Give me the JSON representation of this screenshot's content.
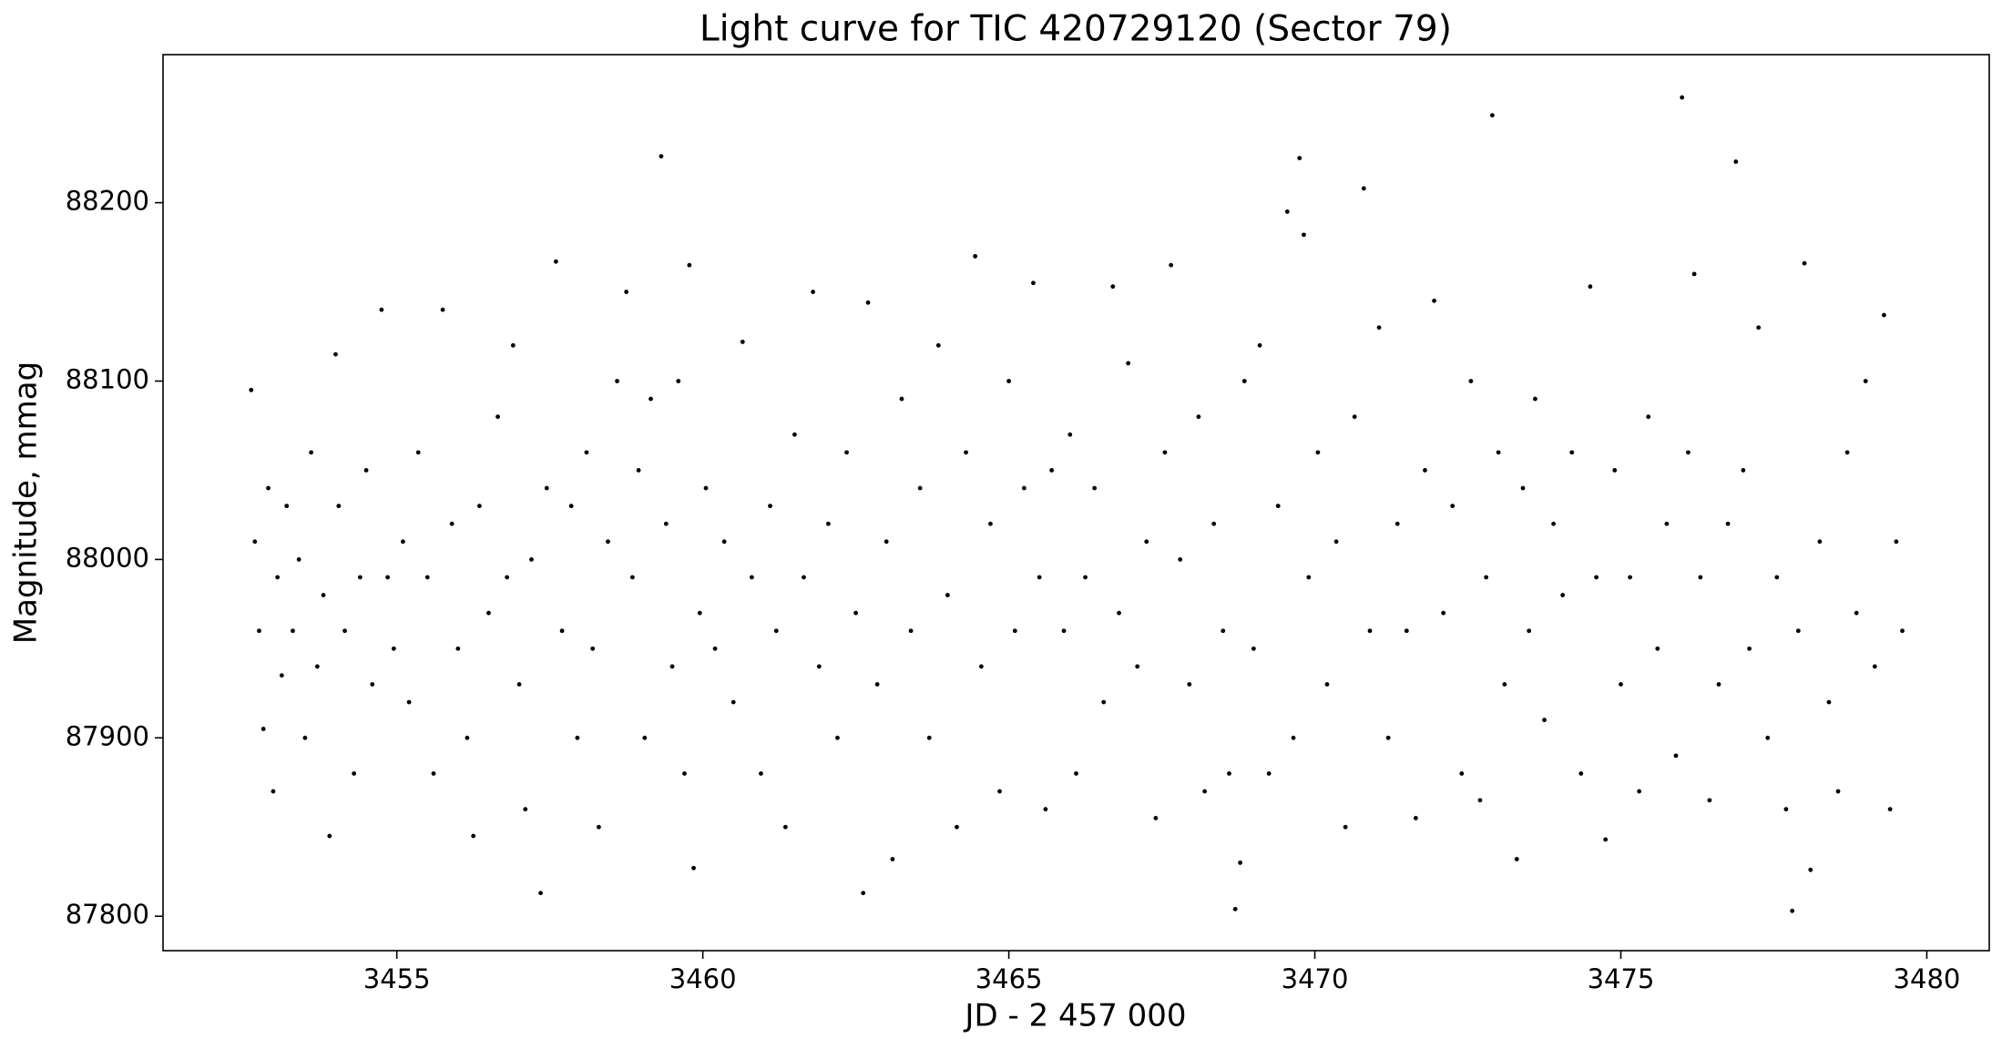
{
  "chart_data": {
    "type": "scatter",
    "title": "Light curve for TIC 420729120 (Sector 79)",
    "x_label": "JD - 2 457 000",
    "y_label": "Magnitude, mmag",
    "color": "#000000",
    "xlim": [
      3451.18,
      3481.02
    ],
    "ylim": [
      87780.7,
      88283
    ],
    "xticks": [
      3455,
      3460,
      3465,
      3470,
      3475,
      3480
    ],
    "yticks": [
      87800,
      87900,
      88000,
      88100,
      88200
    ],
    "x": [
      3452.62,
      3452.68,
      3452.75,
      3452.82,
      3452.9,
      3452.98,
      3453.05,
      3453.12,
      3453.2,
      3453.3,
      3453.4,
      3453.5,
      3453.6,
      3453.7,
      3453.8,
      3453.9,
      3454.0,
      3454.05,
      3454.15,
      3454.3,
      3454.4,
      3454.5,
      3454.6,
      3454.75,
      3454.85,
      3454.95,
      3455.1,
      3455.2,
      3455.35,
      3455.5,
      3455.6,
      3455.75,
      3455.9,
      3456.0,
      3456.15,
      3456.25,
      3456.35,
      3456.5,
      3456.65,
      3456.8,
      3456.9,
      3457.0,
      3457.1,
      3457.2,
      3457.35,
      3457.45,
      3457.6,
      3457.7,
      3457.85,
      3457.95,
      3458.1,
      3458.2,
      3458.3,
      3458.45,
      3458.6,
      3458.75,
      3458.85,
      3458.95,
      3459.05,
      3459.15,
      3459.32,
      3459.4,
      3459.5,
      3459.6,
      3459.7,
      3459.78,
      3459.85,
      3459.95,
      3460.05,
      3460.2,
      3460.35,
      3460.5,
      3460.65,
      3460.8,
      3460.95,
      3461.1,
      3461.2,
      3461.35,
      3461.5,
      3461.65,
      3461.8,
      3461.9,
      3462.05,
      3462.2,
      3462.35,
      3462.5,
      3462.62,
      3462.7,
      3462.85,
      3463.0,
      3463.1,
      3463.25,
      3463.4,
      3463.55,
      3463.7,
      3463.85,
      3464.0,
      3464.15,
      3464.3,
      3464.45,
      3464.55,
      3464.7,
      3464.85,
      3465.0,
      3465.1,
      3465.25,
      3465.4,
      3465.5,
      3465.6,
      3465.7,
      3465.9,
      3466.0,
      3466.1,
      3466.25,
      3466.4,
      3466.55,
      3466.7,
      3466.8,
      3466.95,
      3467.1,
      3467.25,
      3467.4,
      3467.55,
      3467.65,
      3467.8,
      3467.95,
      3468.1,
      3468.2,
      3468.35,
      3468.5,
      3468.6,
      3468.7,
      3468.78,
      3468.85,
      3469.0,
      3469.1,
      3469.25,
      3469.4,
      3469.55,
      3469.65,
      3469.75,
      3469.82,
      3469.9,
      3470.05,
      3470.2,
      3470.35,
      3470.5,
      3470.65,
      3470.8,
      3470.9,
      3471.05,
      3471.2,
      3471.35,
      3471.5,
      3471.65,
      3471.8,
      3471.95,
      3472.1,
      3472.25,
      3472.4,
      3472.55,
      3472.7,
      3472.8,
      3472.9,
      3473.0,
      3473.1,
      3473.3,
      3473.4,
      3473.5,
      3473.6,
      3473.75,
      3473.9,
      3474.05,
      3474.2,
      3474.35,
      3474.5,
      3474.6,
      3474.75,
      3474.9,
      3475.0,
      3475.15,
      3475.3,
      3475.45,
      3475.6,
      3475.75,
      3475.9,
      3476.0,
      3476.1,
      3476.2,
      3476.3,
      3476.45,
      3476.6,
      3476.75,
      3476.88,
      3477.0,
      3477.1,
      3477.25,
      3477.4,
      3477.55,
      3477.7,
      3477.8,
      3477.9,
      3478.0,
      3478.1,
      3478.25,
      3478.4,
      3478.55,
      3478.7,
      3478.85,
      3479.0,
      3479.15,
      3479.3,
      3479.4,
      3479.5,
      3479.6
    ],
    "values": [
      88095,
      88010,
      87960,
      87905,
      88040,
      87870,
      87990,
      87935,
      88030,
      87960,
      88000,
      87900,
      88060,
      87940,
      87980,
      87845,
      88115,
      88030,
      87960,
      87880,
      87990,
      88050,
      87930,
      88140,
      87990,
      87950,
      88010,
      87920,
      88060,
      87990,
      87880,
      88140,
      88020,
      87950,
      87900,
      87845,
      88030,
      87970,
      88080,
      87990,
      88120,
      87930,
      87860,
      88000,
      87813,
      88040,
      88167,
      87960,
      88030,
      87900,
      88060,
      87950,
      87850,
      88010,
      88100,
      88150,
      87990,
      88050,
      87900,
      88090,
      88226,
      88020,
      87940,
      88100,
      87880,
      88165,
      87827,
      87970,
      88040,
      87950,
      88010,
      87920,
      88122,
      87990,
      87880,
      88030,
      87960,
      87850,
      88070,
      87990,
      88150,
      87940,
      88020,
      87900,
      88060,
      87970,
      87813,
      88144,
      87930,
      88010,
      87832,
      88090,
      87960,
      88040,
      87900,
      88120,
      87980,
      87850,
      88060,
      88170,
      87940,
      88020,
      87870,
      88100,
      87960,
      88040,
      88155,
      87990,
      87860,
      88050,
      87960,
      88070,
      87880,
      87990,
      88040,
      87920,
      88153,
      87970,
      88110,
      87940,
      88010,
      87855,
      88060,
      88165,
      88000,
      87930,
      88080,
      87870,
      88020,
      87960,
      87880,
      87804,
      87830,
      88100,
      87950,
      88120,
      87880,
      88030,
      88195,
      87900,
      88225,
      88182,
      87990,
      88060,
      87930,
      88010,
      87850,
      88080,
      88208,
      87960,
      88130,
      87900,
      88020,
      87960,
      87855,
      88050,
      88145,
      87970,
      88030,
      87880,
      88100,
      87865,
      87990,
      88249,
      88060,
      87930,
      87832,
      88040,
      87960,
      88090,
      87910,
      88020,
      87980,
      88060,
      87880,
      88153,
      87990,
      87843,
      88050,
      87930,
      87990,
      87870,
      88080,
      87950,
      88020,
      87890,
      88259,
      88060,
      88160,
      87990,
      87865,
      87930,
      88020,
      88223,
      88050,
      87950,
      88130,
      87900,
      87990,
      87860,
      87803,
      87960,
      88166,
      87826,
      88010,
      87920,
      87870,
      88060,
      87970,
      88100,
      87940,
      88137,
      87860,
      88010,
      87960
    ]
  }
}
